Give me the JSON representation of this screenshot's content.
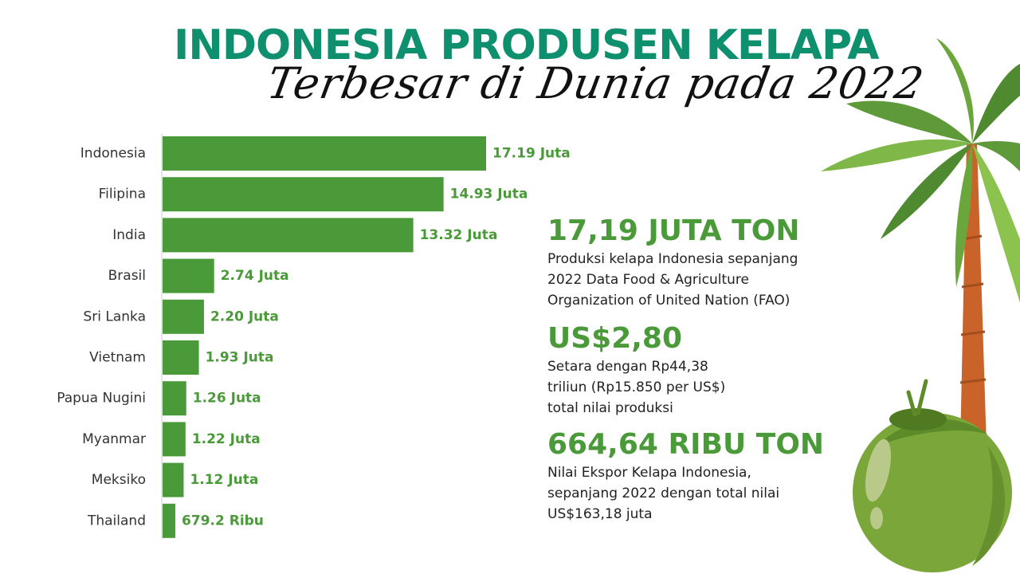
{
  "header": {
    "title": "INDONESIA PRODUSEN KELAPA",
    "subtitle": "Terbesar di Dunia pada 2022"
  },
  "colors": {
    "title": "#0e8f6e",
    "bar": "#4a9a3a",
    "stat_value": "#4a9a3a",
    "text": "#222222"
  },
  "chart_data": {
    "type": "bar",
    "orientation": "horizontal",
    "categories": [
      "Indonesia",
      "Filipina",
      "India",
      "Brasil",
      "Sri Lanka",
      "Vietnam",
      "Papua Nugini",
      "Myanmar",
      "Meksiko",
      "Thailand"
    ],
    "values": [
      17.19,
      14.93,
      13.32,
      2.74,
      2.2,
      1.93,
      1.26,
      1.22,
      1.12,
      0.6792
    ],
    "value_labels": [
      "17.19 Juta",
      "14.93 Juta",
      "13.32 Juta",
      "2.74 Juta",
      "2.20 Juta",
      "1.93 Juta",
      "1.26 Juta",
      "1.22 Juta",
      "1.12 Juta",
      "679.2 Ribu"
    ],
    "xlim": [
      0,
      17.19
    ],
    "grid": false,
    "legend": "none"
  },
  "stats": [
    {
      "value": "17,19 JUTA TON",
      "description": "Produksi kelapa Indonesia sepanjang\n2022 Data Food & Agriculture\nOrganization of United Nation (FAO)"
    },
    {
      "value": "US$2,80",
      "description": "Setara dengan Rp44,38\ntriliun (Rp15.850 per US$)\ntotal nilai produksi"
    },
    {
      "value": "664,64 RIBU TON",
      "description": "Nilai Ekspor Kelapa Indonesia,\nsepanjang 2022 dengan total nilai\nUS$163,18 juta"
    }
  ],
  "decoration": {
    "icon": "palm-tree-coconut-icon"
  }
}
